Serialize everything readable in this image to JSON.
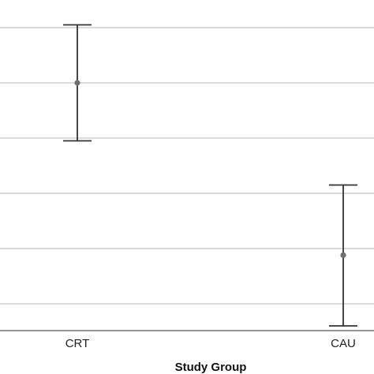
{
  "chart_data": {
    "type": "errorbar",
    "xlabel": "Study Group",
    "ylabel": "",
    "categories": [
      "CRT",
      "CAU"
    ],
    "points": [
      {
        "category": "CRT",
        "mean": 4.5,
        "lower": 3.45,
        "upper": 5.55
      },
      {
        "category": "CAU",
        "mean": 1.38,
        "lower": 0.1,
        "upper": 2.65
      }
    ],
    "ylim": [
      0,
      6
    ],
    "gridlines_y": [
      0.5,
      1.5,
      2.5,
      3.5,
      4.5,
      5.5
    ],
    "grid": "horizontal",
    "legend": "none",
    "colors": {
      "errorbar": "#333333",
      "point": "#707070",
      "grid": "#cfcfcf",
      "axis": "#555555"
    }
  }
}
